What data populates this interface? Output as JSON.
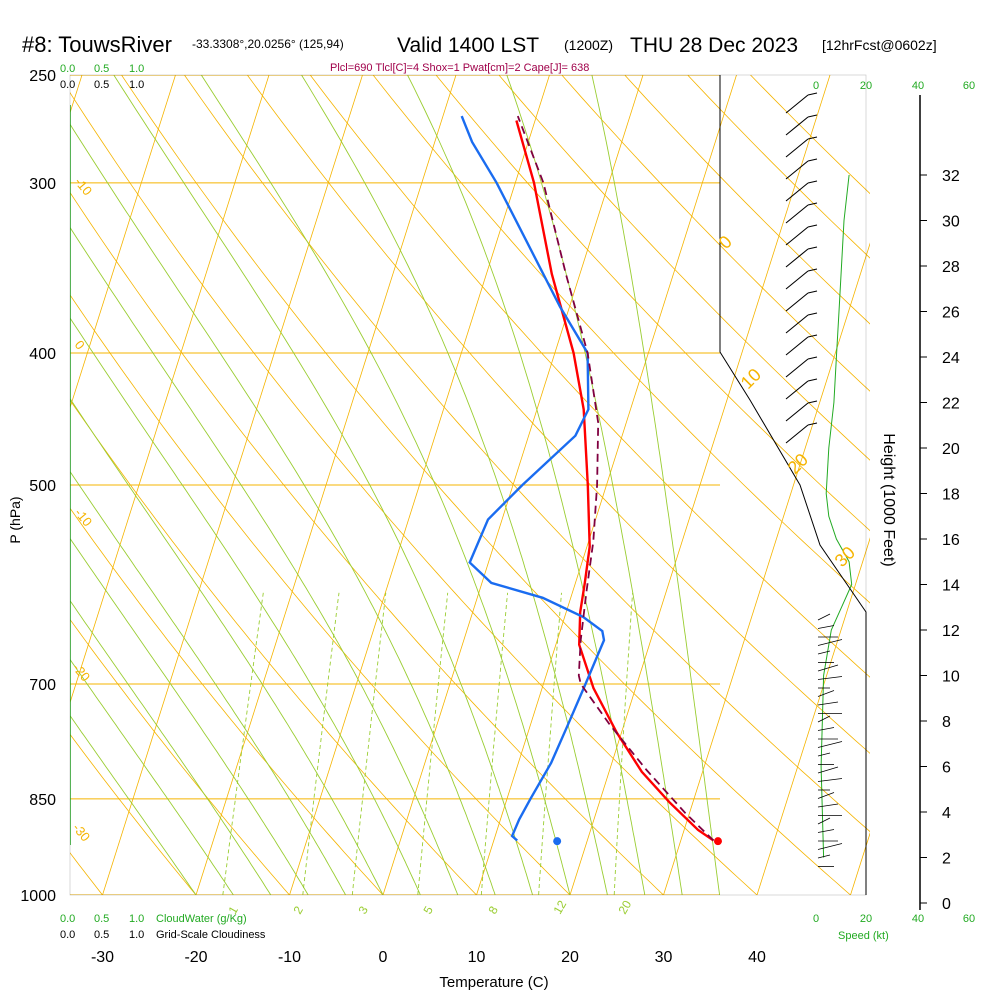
{
  "header": {
    "station": "#8: TouwsRiver",
    "coords": "-33.3308°,20.0256° (125,94)",
    "valid": "Valid 1400 LST",
    "zulu": "(1200Z)",
    "date": "THU 28 Dec 2023",
    "fcst": "[12hrFcst@0602z]",
    "indices": "Plcl=690 Tlcl[C]=4 Shox=1 Pwat[cm]=2 Cape[J]= 638"
  },
  "colors": {
    "isobar": "#f5b400",
    "dry_adiabat": "#f5b400",
    "moist_adiabat": "#9acd32",
    "mixing_ratio": "#9acd32",
    "temperature": "#ff0000",
    "dewpoint": "#1a6cf0",
    "parcel": "#800040",
    "wind_speed": "#22aa22",
    "indices_text": "#a0004a",
    "legend_green": "#22aa22"
  },
  "legends": {
    "top_cloudwater": [
      "0.0",
      "0.5",
      "1.0"
    ],
    "top_cloudiness": [
      "0.0",
      "0.5",
      "1.0"
    ],
    "bottom_cloudwater": [
      "0.0",
      "0.5",
      "1.0"
    ],
    "bottom_cloudwater_label": "CloudWater (g/Kg)",
    "bottom_cloudiness": [
      "0.0",
      "0.5",
      "1.0"
    ],
    "bottom_cloudiness_label": "Grid-Scale Cloudiness"
  },
  "wind_speed_axis": {
    "top_ticks": [
      "0",
      "20",
      "40",
      "60"
    ],
    "bottom_ticks": [
      "0",
      "20",
      "40",
      "60"
    ],
    "label": "Speed (kt)"
  },
  "chart_data": {
    "type": "line",
    "subtype": "skew-T log-P sounding",
    "xlabel": "Temperature (C)",
    "ylabel": "P (hPa)",
    "y2label": "Height (1000 Feet)",
    "x_ticks": [
      -30,
      -20,
      -10,
      0,
      10,
      20,
      30,
      40
    ],
    "y_ticks": [
      250,
      300,
      400,
      500,
      700,
      850,
      1000
    ],
    "y2_ticks": [
      0,
      2,
      4,
      6,
      8,
      10,
      12,
      14,
      16,
      18,
      20,
      22,
      24,
      26,
      28,
      30,
      32
    ],
    "series": [
      {
        "name": "temperature",
        "points": [
          [
            33.5,
            912
          ],
          [
            31.5,
            896
          ],
          [
            27.5,
            855
          ],
          [
            23.5,
            812
          ],
          [
            19.5,
            760
          ],
          [
            15.5,
            705
          ],
          [
            12.5,
            655
          ],
          [
            11.5,
            620
          ],
          [
            11.0,
            590
          ],
          [
            10.3,
            555
          ],
          [
            8.0,
            500
          ],
          [
            5.0,
            440
          ],
          [
            2.0,
            400
          ],
          [
            -3.0,
            350
          ],
          [
            -8.0,
            300
          ],
          [
            -12.0,
            270
          ]
        ]
      },
      {
        "name": "dewpoint",
        "points": [
          [
            12.5,
            912
          ],
          [
            11.8,
            905
          ],
          [
            12.0,
            880
          ],
          [
            12.5,
            850
          ],
          [
            13.5,
            800
          ],
          [
            14.0,
            750
          ],
          [
            14.5,
            700
          ],
          [
            15.0,
            650
          ],
          [
            14.5,
            640
          ],
          [
            12.0,
            625
          ],
          [
            7.0,
            605
          ],
          [
            1.0,
            590
          ],
          [
            -2.0,
            570
          ],
          [
            -1.5,
            530
          ],
          [
            1.0,
            500
          ],
          [
            5.0,
            460
          ],
          [
            5.5,
            440
          ],
          [
            3.5,
            400
          ],
          [
            -1.0,
            370
          ],
          [
            -7.0,
            330
          ],
          [
            -12.0,
            300
          ],
          [
            -16.0,
            280
          ],
          [
            -18.0,
            268
          ]
        ]
      },
      {
        "name": "parcel",
        "points": [
          [
            33.5,
            912
          ],
          [
            29.5,
            870
          ],
          [
            24.0,
            810
          ],
          [
            18.5,
            750
          ],
          [
            14.0,
            700
          ],
          [
            13.5,
            690
          ],
          [
            12.5,
            650
          ],
          [
            11.5,
            600
          ],
          [
            10.5,
            550
          ],
          [
            9.0,
            500
          ],
          [
            7.0,
            450
          ],
          [
            3.5,
            400
          ],
          [
            -1.5,
            350
          ],
          [
            -7.0,
            300
          ],
          [
            -12.0,
            268
          ]
        ]
      }
    ],
    "surface_points": [
      {
        "name": "dewpoint",
        "x": 16.8,
        "y": 913
      },
      {
        "name": "temperature",
        "x": 34.0,
        "y": 913
      }
    ],
    "dry_adiabat_labels": [
      "-10",
      "0",
      "10",
      "-20",
      "-30",
      "0",
      "10",
      "20",
      "30"
    ],
    "mixing_ratio_labels": [
      "1",
      "2",
      "3",
      "5",
      "8",
      "12",
      "20"
    ],
    "wind_speed_profile": [
      [
        2,
        3
      ],
      [
        6,
        2
      ],
      [
        10,
        3
      ],
      [
        12,
        6
      ],
      [
        13,
        10
      ],
      [
        14,
        14
      ],
      [
        15,
        13
      ],
      [
        16,
        8
      ],
      [
        17,
        5
      ],
      [
        18,
        4
      ],
      [
        20,
        5
      ],
      [
        22,
        7
      ],
      [
        24,
        8
      ],
      [
        26,
        9
      ],
      [
        28,
        10
      ],
      [
        30,
        11
      ],
      [
        32,
        13
      ]
    ]
  }
}
